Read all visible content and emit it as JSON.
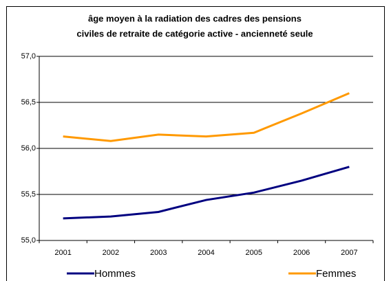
{
  "chart_data": {
    "type": "line",
    "title": [
      "âge moyen à la radiation des cadres des pensions",
      "civiles de retraite de catégorie active  -  ancienneté seule"
    ],
    "categories": [
      "2001",
      "2002",
      "2003",
      "2004",
      "2005",
      "2006",
      "2007"
    ],
    "series": [
      {
        "name": "Hommes",
        "color": "#000080",
        "values": [
          55.24,
          55.26,
          55.31,
          55.44,
          55.52,
          55.65,
          55.8
        ]
      },
      {
        "name": "Femmes",
        "color": "#ff9900",
        "values": [
          56.13,
          56.08,
          56.15,
          56.13,
          56.17,
          56.38,
          56.6
        ]
      }
    ],
    "ylim": [
      55.0,
      57.0
    ],
    "yticks": [
      {
        "value": 55.0,
        "label": "55,0"
      },
      {
        "value": 55.5,
        "label": "55,5"
      },
      {
        "value": 56.0,
        "label": "56,0"
      },
      {
        "value": 56.5,
        "label": "56,5"
      },
      {
        "value": 57.0,
        "label": "57,0"
      }
    ],
    "grid": true,
    "legend": "bottom"
  }
}
